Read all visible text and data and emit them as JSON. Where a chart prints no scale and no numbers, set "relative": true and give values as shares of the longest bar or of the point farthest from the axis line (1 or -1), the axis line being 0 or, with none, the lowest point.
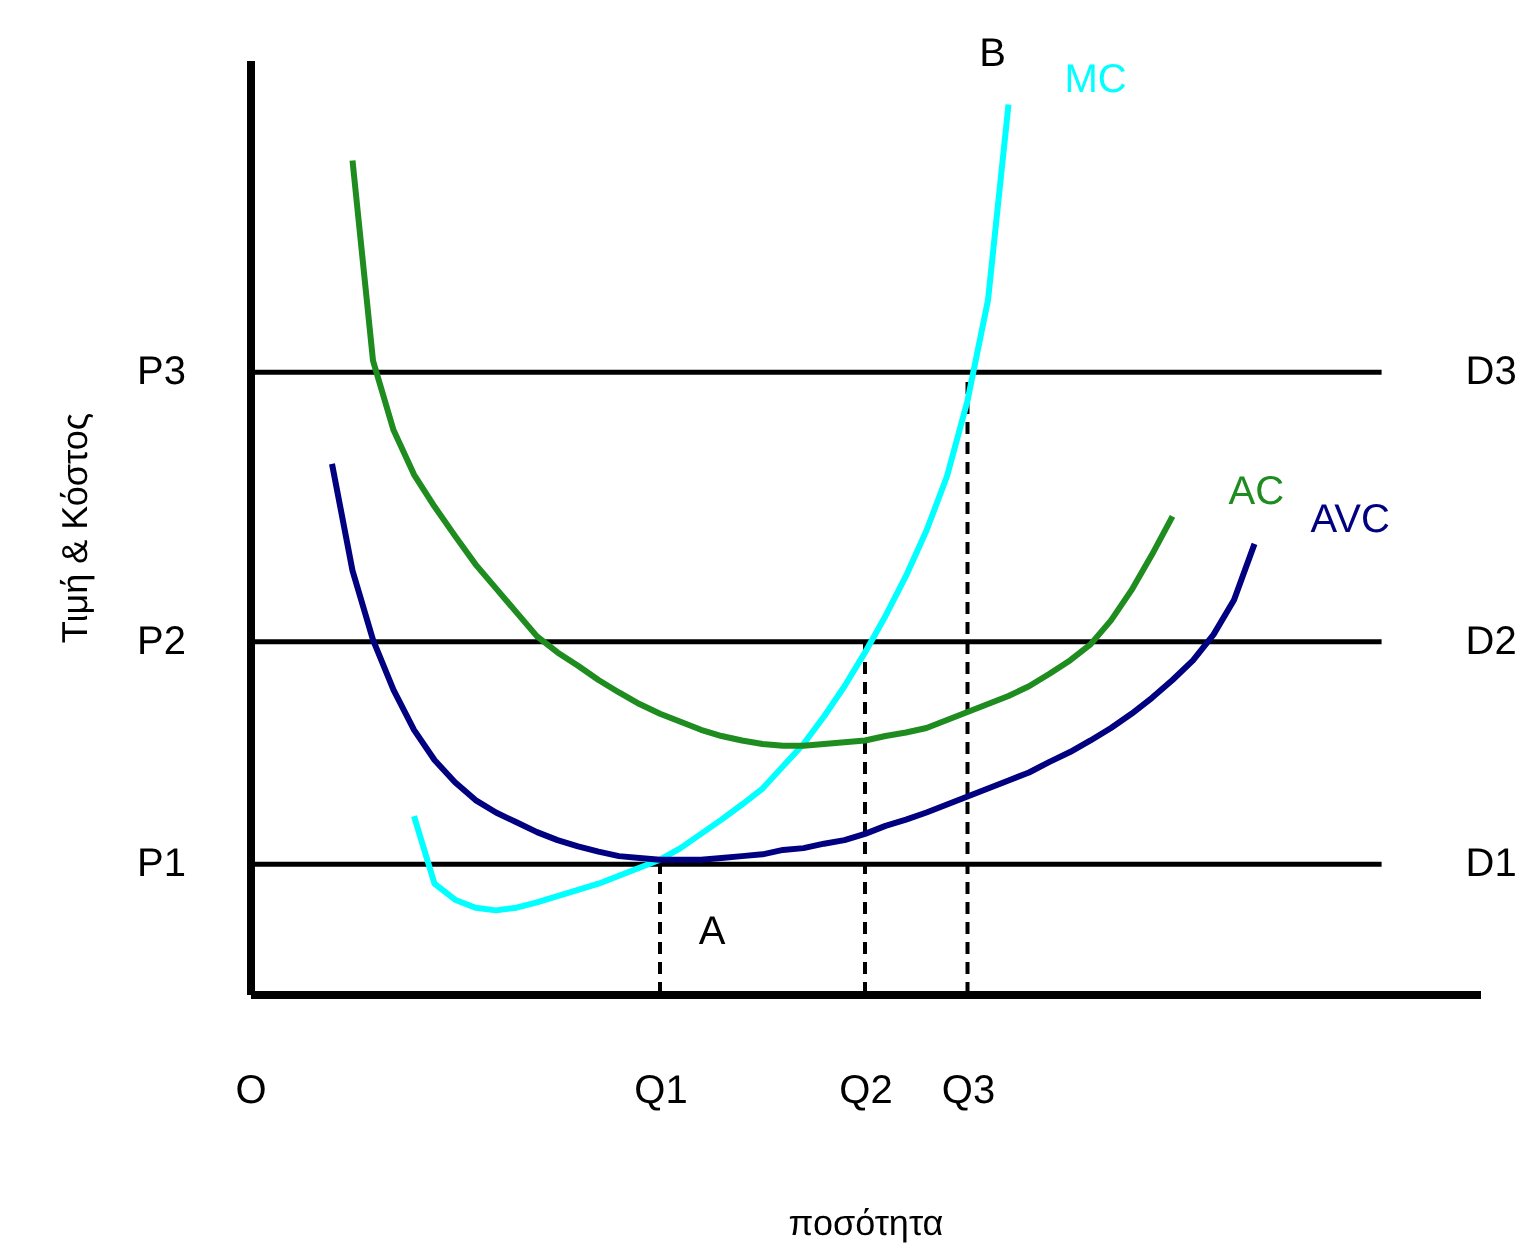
{
  "chart_data": {
    "type": "line",
    "relative": true,
    "xlabel": "ποσότητα",
    "ylabel": "Τιμή & Κόστος",
    "marker": "none",
    "line_style": "solid",
    "categories": [
      "O",
      null,
      null,
      null,
      null,
      null,
      null,
      null,
      null,
      null,
      null,
      null,
      null,
      null,
      null,
      null,
      null,
      null,
      null,
      null,
      "Q1",
      null,
      null,
      null,
      null,
      null,
      null,
      null,
      null,
      null,
      "Q2",
      null,
      null,
      null,
      null,
      "Q3",
      null,
      null,
      null,
      null,
      null,
      null,
      null,
      null,
      null,
      null,
      null,
      null,
      null,
      null,
      null,
      null,
      null,
      null,
      null,
      null,
      null,
      null,
      null,
      null,
      null
    ],
    "series": [
      {
        "name": "MC",
        "color": "#00ffff",
        "values": [
          null,
          null,
          null,
          null,
          null,
          null,
          null,
          null,
          0.2,
          0.124,
          0.106,
          0.097,
          0.094,
          0.097,
          0.103,
          0.11,
          0.117,
          0.124,
          0.133,
          0.142,
          0.151,
          0.164,
          0.18,
          0.196,
          0.213,
          0.231,
          0.256,
          0.281,
          0.312,
          0.346,
          0.384,
          0.425,
          0.47,
          0.521,
          0.582,
          0.667,
          0.78,
          1.0,
          null,
          null,
          null,
          null,
          null,
          null,
          null,
          null,
          null,
          null,
          null,
          null,
          null,
          null,
          null,
          null,
          null,
          null,
          null,
          null,
          null,
          null,
          null
        ]
      },
      {
        "name": "AC",
        "color": "#1e8c1e",
        "values": [
          null,
          null,
          null,
          null,
          null,
          0.937,
          0.712,
          0.634,
          0.584,
          0.548,
          0.515,
          0.483,
          0.456,
          0.429,
          0.402,
          0.384,
          0.369,
          0.353,
          0.339,
          0.326,
          0.315,
          0.306,
          0.297,
          0.29,
          0.285,
          0.281,
          0.279,
          0.279,
          0.281,
          0.283,
          0.285,
          0.29,
          0.294,
          0.299,
          0.308,
          0.317,
          0.326,
          0.335,
          0.346,
          0.36,
          0.375,
          0.393,
          0.42,
          0.454,
          0.494,
          0.537,
          null,
          null,
          null,
          null,
          null,
          null,
          null,
          null,
          null,
          null,
          null,
          null,
          null,
          null,
          null
        ]
      },
      {
        "name": "AVC",
        "color": "#000080",
        "values": [
          null,
          null,
          null,
          null,
          0.596,
          0.476,
          0.398,
          0.342,
          0.297,
          0.263,
          0.238,
          0.218,
          0.204,
          0.193,
          0.182,
          0.173,
          0.166,
          0.16,
          0.155,
          0.153,
          0.151,
          0.151,
          0.151,
          0.153,
          0.155,
          0.157,
          0.162,
          0.164,
          0.169,
          0.173,
          0.18,
          0.189,
          0.196,
          0.204,
          0.213,
          0.222,
          0.231,
          0.24,
          0.249,
          0.261,
          0.272,
          0.285,
          0.299,
          0.315,
          0.333,
          0.353,
          0.375,
          0.404,
          0.443,
          0.506,
          null,
          null,
          null,
          null,
          null,
          null,
          null,
          null,
          null,
          null,
          null
        ]
      }
    ],
    "ref_lines": [
      {
        "axis": "y",
        "value": 0.146,
        "label": "D1",
        "color": "#000000"
      },
      {
        "axis": "y",
        "value": 0.396,
        "label": "D2",
        "color": "#000000"
      },
      {
        "axis": "y",
        "value": 0.699,
        "label": "D3",
        "color": "#000000"
      },
      {
        "axis": "x",
        "value": "Q1",
        "color": "#000000",
        "line_style": "dashed"
      },
      {
        "axis": "x",
        "value": "Q2",
        "color": "#000000",
        "line_style": "dashed"
      },
      {
        "axis": "x",
        "value": "Q3",
        "color": "#000000",
        "line_style": "dashed"
      }
    ],
    "annotations": [
      {
        "text": "P1",
        "x": "O",
        "y": 0.146
      },
      {
        "text": "P2",
        "x": "O",
        "y": 0.396
      },
      {
        "text": "P3",
        "x": "O",
        "y": 0.699
      },
      {
        "text": "A",
        "x": "Q1",
        "y": 0.146
      },
      "B"
    ]
  }
}
